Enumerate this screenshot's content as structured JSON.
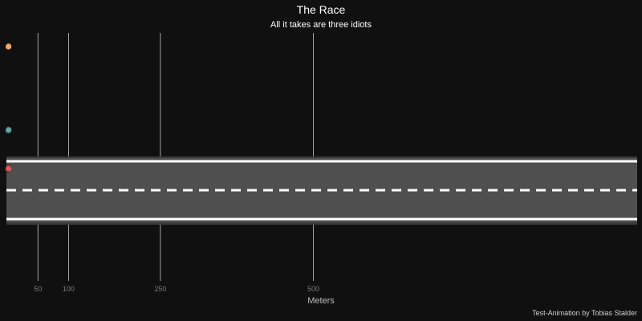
{
  "chart_data": {
    "type": "scatter",
    "title": "The Race",
    "subtitle": "All it takes are three idiots",
    "xlabel": "Meters",
    "caption": "Test-Animation by Tobias Stalder",
    "x_ticks": [
      50,
      100,
      250,
      500
    ],
    "xlim": [
      -1.5,
      1029
    ],
    "grid": "vertical",
    "series": [
      {
        "x": 2,
        "lane": 1,
        "color": "#f0a868"
      },
      {
        "x": 2,
        "lane": 2,
        "color": "#5fa9a4"
      },
      {
        "x": 2,
        "lane": 3,
        "color": "#e05555"
      }
    ]
  },
  "colors": {
    "background": "#101010",
    "road": "#4f4f4f",
    "road_edge": "#3a3a3a",
    "lane_marking": "#ffffff",
    "grid": "#c8c8c8",
    "title": "#ffffff",
    "tick_label": "#7a7a7a",
    "axis_label": "#bdbdbd",
    "caption": "#d0d0d0"
  }
}
